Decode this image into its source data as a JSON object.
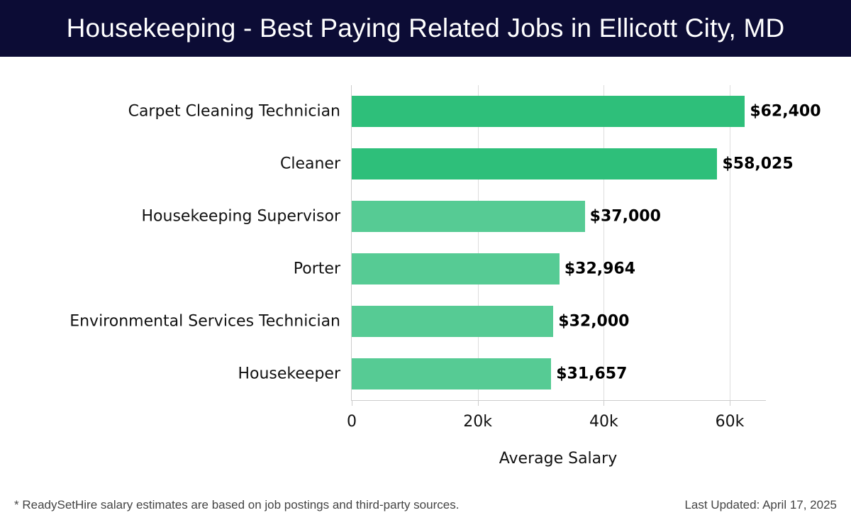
{
  "header": {
    "title": "Housekeeping - Best Paying Related Jobs in Ellicott City, MD"
  },
  "footer": {
    "note": "* ReadySetHire salary estimates are based on job postings and third-party sources.",
    "updated": "Last Updated: April 17, 2025"
  },
  "colors": {
    "header_bg": "#0c0c35",
    "bar_dark": "#2ebf7a",
    "bar_light": "#56cb94"
  },
  "chart_data": {
    "type": "bar",
    "orientation": "horizontal",
    "title": "Housekeeping - Best Paying Related Jobs in Ellicott City, MD",
    "xlabel": "Average Salary",
    "ylabel": "",
    "categories": [
      "Carpet Cleaning Technician",
      "Cleaner",
      "Housekeeping Supervisor",
      "Porter",
      "Environmental Services Technician",
      "Housekeeper"
    ],
    "values": [
      62400,
      58025,
      37000,
      32964,
      32000,
      31657
    ],
    "value_labels": [
      "$62,400",
      "$58,025",
      "$37,000",
      "$32,964",
      "$32,000",
      "$31,657"
    ],
    "xticks": [
      0,
      20000,
      40000,
      60000
    ],
    "xtick_labels": [
      "0",
      "20k",
      "40k",
      "60k"
    ],
    "xlim": [
      0,
      65700
    ],
    "grid": "vertical",
    "legend": null
  }
}
